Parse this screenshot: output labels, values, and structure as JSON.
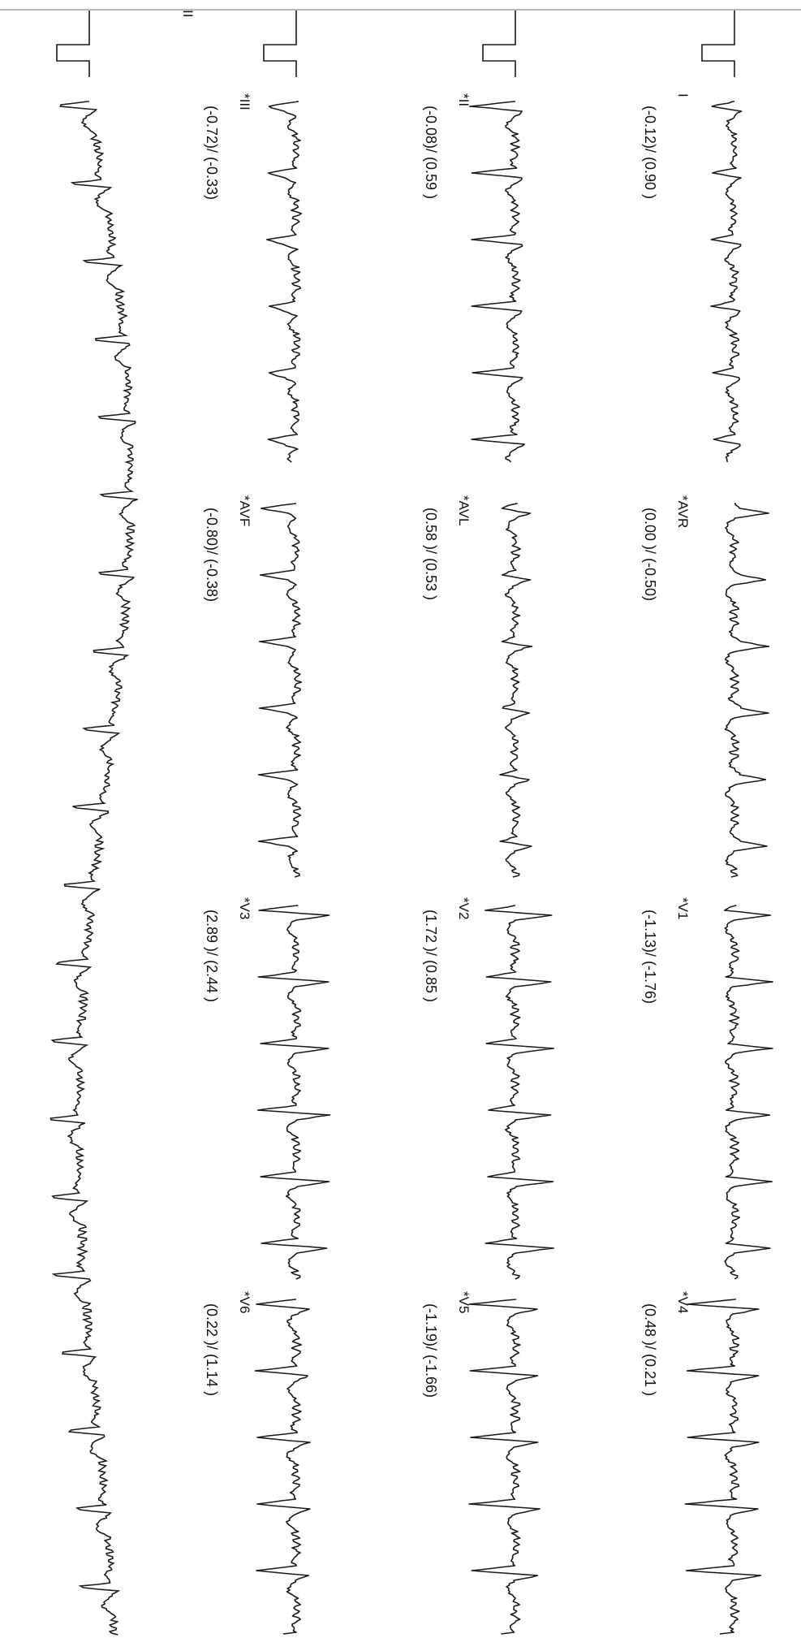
{
  "rhythm_lead_label": "II",
  "leads": [
    {
      "id": "I",
      "label": "I",
      "asterisk": "",
      "measure": "(-0.12)/ (0.90 )"
    },
    {
      "id": "II",
      "label": "II",
      "asterisk": "*",
      "measure": "(-0.08)/ (0.59 )"
    },
    {
      "id": "III",
      "label": "III",
      "asterisk": "*",
      "measure": "(-0.72)/ (-0.33)"
    },
    {
      "id": "AVR",
      "label": "AVR",
      "asterisk": "*",
      "measure": "(0.00 )/ (-0.50)"
    },
    {
      "id": "AVL",
      "label": "AVL",
      "asterisk": "*",
      "measure": "(0.58 )/ (0.53 )"
    },
    {
      "id": "AVF",
      "label": "AVF",
      "asterisk": "*",
      "measure": "(-0.80)/ (-0.38)"
    },
    {
      "id": "V1",
      "label": "V1",
      "asterisk": "*",
      "measure": "(-1.13)/ (-1.76)"
    },
    {
      "id": "V2",
      "label": "V2",
      "asterisk": "*",
      "measure": "(1.72 )/ (0.85 )"
    },
    {
      "id": "V3",
      "label": "V3",
      "asterisk": "*",
      "measure": "(2.89 )/ (2.44 )"
    },
    {
      "id": "V4",
      "label": "V4",
      "asterisk": "*",
      "measure": "(0.48 )/ (0.21 )"
    },
    {
      "id": "V5",
      "label": "V5",
      "asterisk": "*",
      "measure": "(-1.19)/ (-1.66)"
    },
    {
      "id": "V6",
      "label": "V6",
      "asterisk": "*",
      "measure": "(0.22 )/ (1.14 )"
    }
  ],
  "colors": {
    "trace": "#1a1a1a",
    "text": "#111111",
    "paper": "#ffffff",
    "border": "#b8b8b8"
  }
}
